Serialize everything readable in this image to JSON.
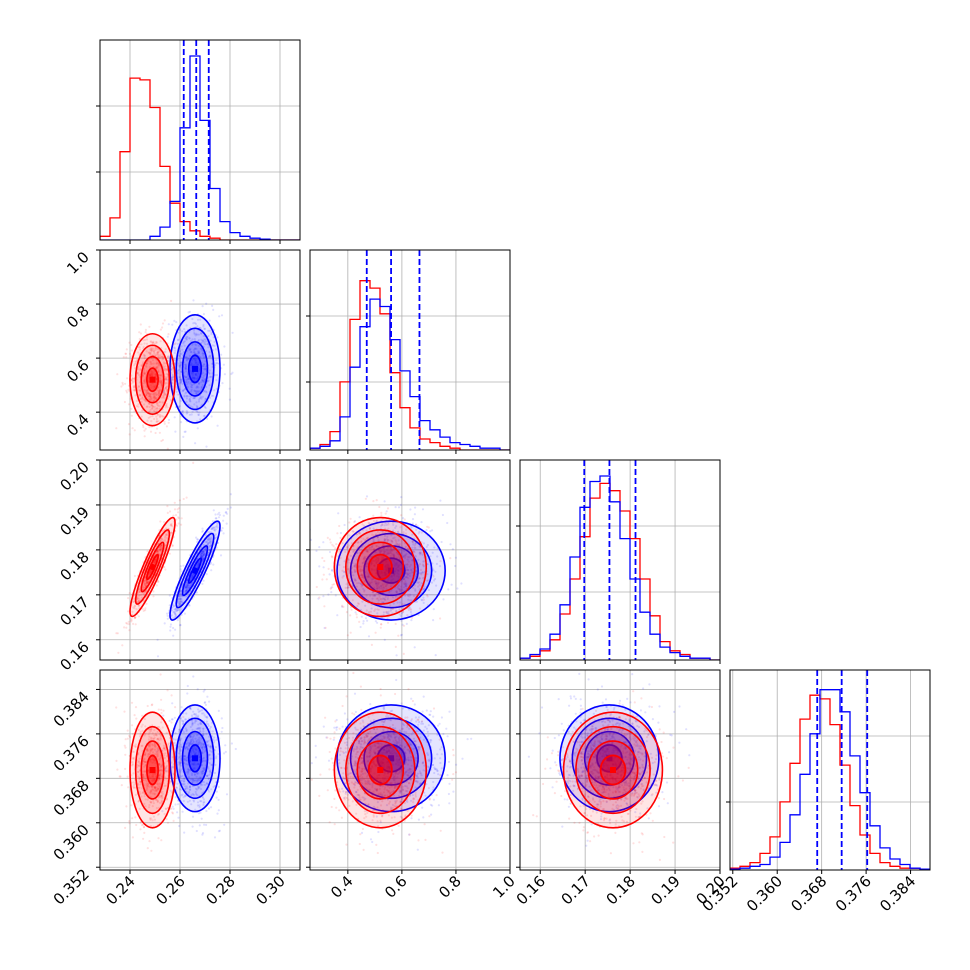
{
  "chart_data": {
    "type": "corner",
    "grid": true,
    "colors": {
      "series_a": "#ff0000",
      "series_b": "#0000ff"
    },
    "parameters": [
      {
        "range": [
          0.228,
          0.308
        ],
        "ticks": [
          0.24,
          0.26,
          0.28,
          0.3
        ],
        "tick_labels": [
          "0.24",
          "0.26",
          "0.28",
          "0.30"
        ]
      },
      {
        "range": [
          0.26,
          1.0
        ],
        "ticks": [
          0.4,
          0.6,
          0.8,
          1.0
        ],
        "tick_labels": [
          "0.4",
          "0.6",
          "0.8",
          "1.0"
        ]
      },
      {
        "range": [
          0.1555,
          0.2
        ],
        "ticks": [
          0.16,
          0.17,
          0.18,
          0.19,
          0.2
        ],
        "tick_labels": [
          "0.16",
          "0.17",
          "0.18",
          "0.19",
          "0.20"
        ]
      },
      {
        "range": [
          0.3515,
          0.3875
        ],
        "ticks": [
          0.352,
          0.36,
          0.368,
          0.376,
          0.384
        ],
        "tick_labels": [
          "0.352",
          "0.360",
          "0.368",
          "0.376",
          "0.384"
        ]
      }
    ],
    "series": [
      {
        "color": "#ff0000",
        "means": [
          0.249,
          0.52,
          0.1762,
          0.3695
        ],
        "sigmas": [
          0.0045,
          0.085,
          0.0055,
          0.0052
        ],
        "correlations": [
          [
            0,
            2,
            0.9
          ]
        ],
        "histograms": [
          [
            0.02,
            0.12,
            0.48,
            0.88,
            0.87,
            0.72,
            0.4,
            0.2,
            0.1,
            0.05,
            0.02,
            0.01,
            0,
            0,
            0,
            0,
            0,
            0,
            0,
            0
          ],
          [
            0.01,
            0.03,
            0.1,
            0.37,
            0.71,
            0.92,
            0.88,
            0.74,
            0.42,
            0.23,
            0.12,
            0.06,
            0.04,
            0.02,
            0.01,
            0,
            0,
            0,
            0,
            0
          ],
          [
            0.01,
            0.02,
            0.05,
            0.11,
            0.25,
            0.44,
            0.67,
            0.88,
            0.96,
            0.92,
            0.81,
            0.66,
            0.44,
            0.24,
            0.1,
            0.05,
            0.03,
            0.01,
            0.01,
            0
          ],
          [
            0.01,
            0.02,
            0.04,
            0.09,
            0.18,
            0.37,
            0.58,
            0.82,
            0.95,
            0.93,
            0.79,
            0.57,
            0.35,
            0.19,
            0.09,
            0.04,
            0.02,
            0.01,
            0.01,
            0
          ]
        ]
      },
      {
        "color": "#0000ff",
        "means": [
          0.266,
          0.56,
          0.1754,
          0.3716
        ],
        "sigmas": [
          0.005,
          0.1,
          0.0055,
          0.0048
        ],
        "correlations": [
          [
            0,
            2,
            0.9
          ]
        ],
        "quantiles": [
          [
            0.2615,
            0.2665,
            0.2715
          ],
          [
            0.47,
            0.56,
            0.665
          ],
          [
            0.1698,
            0.1754,
            0.1812
          ],
          [
            0.3672,
            0.3716,
            0.3762
          ]
        ],
        "histograms": [
          [
            0,
            0,
            0,
            0,
            0,
            0.02,
            0.07,
            0.21,
            0.61,
            1.0,
            0.65,
            0.28,
            0.1,
            0.04,
            0.02,
            0.01,
            0.005,
            0,
            0,
            0
          ],
          [
            0.01,
            0.02,
            0.05,
            0.18,
            0.45,
            0.67,
            0.82,
            0.78,
            0.6,
            0.43,
            0.29,
            0.16,
            0.11,
            0.07,
            0.04,
            0.03,
            0.02,
            0.01,
            0.01,
            0
          ],
          [
            0.01,
            0.03,
            0.06,
            0.14,
            0.3,
            0.56,
            0.83,
            0.97,
            1.0,
            0.86,
            0.66,
            0.44,
            0.26,
            0.14,
            0.07,
            0.04,
            0.02,
            0.01,
            0.01,
            0
          ],
          [
            0.005,
            0.01,
            0.02,
            0.03,
            0.07,
            0.15,
            0.3,
            0.52,
            0.74,
            0.98,
            0.98,
            0.86,
            0.62,
            0.42,
            0.24,
            0.12,
            0.06,
            0.03,
            0.01,
            0.005
          ]
        ]
      }
    ]
  }
}
